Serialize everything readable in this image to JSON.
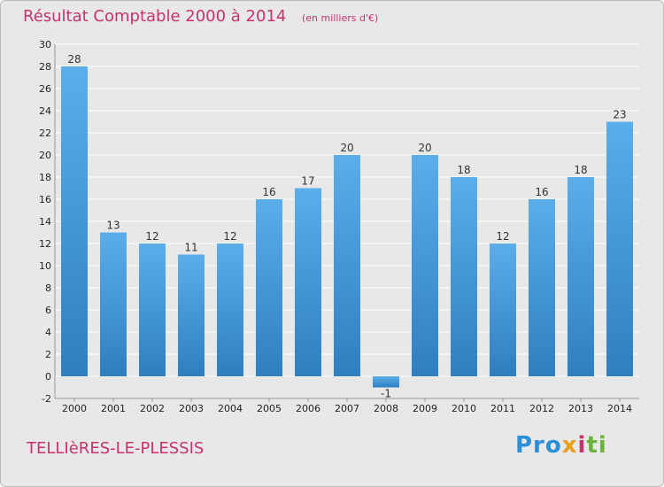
{
  "title": "Résultat Comptable 2000 à 2014",
  "subtitle": "(en milliers d'€)",
  "commune": "TELLIèRES-LE-PLESSIS",
  "logo": {
    "parts": [
      "Pro",
      "x",
      "i",
      "ti"
    ]
  },
  "colors": {
    "bar": "#2e86c8",
    "bar_light": "#5aaeea",
    "title": "#c8326e",
    "grid": "#ffffff"
  },
  "chart_data": {
    "type": "bar",
    "categories": [
      "2000",
      "2001",
      "2002",
      "2003",
      "2004",
      "2005",
      "2006",
      "2007",
      "2008",
      "2009",
      "2010",
      "2011",
      "2012",
      "2013",
      "2014"
    ],
    "values": [
      28,
      13,
      12,
      11,
      12,
      16,
      17,
      20,
      -1,
      20,
      18,
      12,
      16,
      18,
      23
    ],
    "value_labels": [
      "28",
      "13",
      "12",
      "11",
      "12",
      "16",
      "17",
      "20",
      "-1",
      "20",
      "18",
      "12",
      "16",
      "18",
      "23"
    ],
    "ylim": [
      -2,
      30
    ],
    "yticks": [
      "-2",
      "0",
      "2",
      "4",
      "6",
      "8",
      "10",
      "12",
      "14",
      "16",
      "18",
      "20",
      "22",
      "24",
      "26",
      "28",
      "30"
    ],
    "grid": true,
    "xlabel": "",
    "ylabel": ""
  }
}
